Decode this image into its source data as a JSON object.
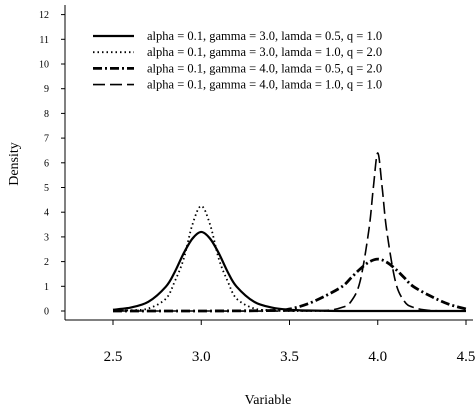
{
  "chart_data": {
    "type": "line",
    "title": "",
    "xlabel": "Variable",
    "ylabel": "Density",
    "xlim": [
      2.5,
      4.5
    ],
    "ylim": [
      0,
      12
    ],
    "xticks": [
      "2.5",
      "3.0",
      "3.5",
      "4.0",
      "4.5"
    ],
    "yticks": [
      "0",
      "1",
      "2",
      "3",
      "4",
      "5",
      "6",
      "7",
      "8",
      "9",
      "10",
      "11",
      "12"
    ],
    "grid": false,
    "legend_position": "top-left",
    "series": [
      {
        "name": "alpha = 0.1, gamma = 3.0, lamda = 0.5, q = 1.0",
        "line_style": "solid",
        "x": [
          2.5,
          2.6,
          2.7,
          2.8,
          2.85,
          2.9,
          2.95,
          3.0,
          3.05,
          3.1,
          3.15,
          3.2,
          3.3,
          3.4,
          3.5,
          3.6,
          3.8,
          4.0,
          4.5
        ],
        "y": [
          0.05,
          0.14,
          0.37,
          0.99,
          1.58,
          2.33,
          2.93,
          3.2,
          2.93,
          2.33,
          1.58,
          0.99,
          0.37,
          0.14,
          0.05,
          0.02,
          0.0,
          0.0,
          0.0
        ]
      },
      {
        "name": "alpha = 0.1, gamma = 3.0, lamda = 1.0, q = 2.0",
        "line_style": "dotted",
        "x": [
          2.5,
          2.6,
          2.7,
          2.8,
          2.85,
          2.9,
          2.95,
          3.0,
          3.05,
          3.1,
          3.15,
          3.2,
          3.3,
          3.4,
          3.5,
          3.6,
          3.8,
          4.0,
          4.5
        ],
        "y": [
          0.0,
          0.03,
          0.1,
          0.5,
          1.2,
          2.1,
          3.5,
          4.25,
          3.5,
          2.1,
          1.2,
          0.5,
          0.1,
          0.03,
          0.0,
          0.0,
          0.0,
          0.0,
          0.0
        ]
      },
      {
        "name": "alpha = 0.1, gamma = 4.0, lamda = 0.5, q = 2.0",
        "line_style": "dashdot",
        "x": [
          2.5,
          3.0,
          3.4,
          3.5,
          3.6,
          3.7,
          3.8,
          3.85,
          3.9,
          3.95,
          4.0,
          4.05,
          4.1,
          4.15,
          4.2,
          4.3,
          4.4,
          4.5
        ],
        "y": [
          0.0,
          0.0,
          0.02,
          0.08,
          0.28,
          0.6,
          1.0,
          1.35,
          1.7,
          1.98,
          2.1,
          1.98,
          1.7,
          1.35,
          1.0,
          0.6,
          0.28,
          0.08
        ]
      },
      {
        "name": "alpha = 0.1, gamma = 4.0, lamda = 1.0, q = 1.0",
        "line_style": "dashed",
        "x": [
          2.5,
          3.0,
          3.5,
          3.7,
          3.8,
          3.85,
          3.9,
          3.95,
          3.975,
          4.0,
          4.025,
          4.05,
          4.1,
          4.15,
          4.2,
          4.3,
          4.5
        ],
        "y": [
          0.0,
          0.0,
          0.0,
          0.02,
          0.15,
          0.4,
          1.2,
          3.3,
          5.0,
          6.4,
          5.0,
          3.3,
          1.2,
          0.4,
          0.15,
          0.02,
          0.0
        ]
      }
    ]
  }
}
